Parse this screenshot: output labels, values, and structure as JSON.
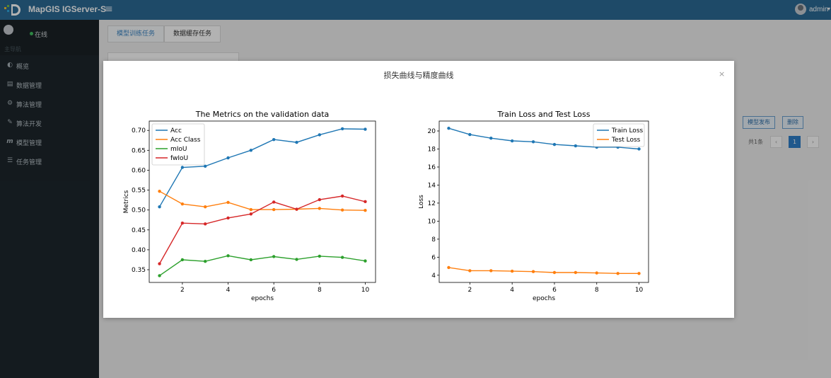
{
  "header": {
    "brand": "MapGIS IGServer-S",
    "menu_icon": "≡",
    "user": "admin"
  },
  "sidebar": {
    "status": "在线",
    "heading": "主导航",
    "items": [
      {
        "icon": "◐",
        "label": "概览"
      },
      {
        "icon": "▤",
        "label": "数据管理"
      },
      {
        "icon": "⚙",
        "label": "算法管理"
      },
      {
        "icon": "✎",
        "label": "算法开发"
      },
      {
        "icon": "m",
        "label": "模型管理"
      },
      {
        "icon": "☰",
        "label": "任务管理"
      }
    ]
  },
  "page": {
    "tabs": [
      {
        "label": "模型训练任务",
        "active": true
      },
      {
        "label": "数据缓存任务",
        "active": false
      }
    ],
    "row_buttons": [
      "模型发布",
      "删除"
    ],
    "pagination": {
      "total": "共1条",
      "prev": "‹",
      "current": "1",
      "next": "›"
    }
  },
  "modal": {
    "title": "损失曲线与精度曲线",
    "close": "×"
  },
  "chart_data": [
    {
      "type": "line",
      "title": "The Metrics on the validation data",
      "xlabel": "epochs",
      "ylabel": "Metrics",
      "x": [
        1,
        2,
        3,
        4,
        5,
        6,
        7,
        8,
        9,
        10
      ],
      "xlim": [
        0.55,
        10.45
      ],
      "ylim": [
        0.318,
        0.7235
      ],
      "xticks": [
        2,
        4,
        6,
        8,
        10
      ],
      "yticks": [
        0.35,
        0.4,
        0.45,
        0.5,
        0.55,
        0.6,
        0.65,
        0.7
      ],
      "ytick_labels": [
        "0.35",
        "0.40",
        "0.45",
        "0.50",
        "0.55",
        "0.60",
        "0.65",
        "0.70"
      ],
      "legend": "top-left",
      "series": [
        {
          "name": "Acc",
          "color": "#1f77b4",
          "values": [
            0.508,
            0.607,
            0.61,
            0.631,
            0.65,
            0.677,
            0.67,
            0.689,
            0.704,
            0.703
          ]
        },
        {
          "name": "Acc Class",
          "color": "#ff7f0e",
          "values": [
            0.547,
            0.515,
            0.508,
            0.519,
            0.501,
            0.501,
            0.502,
            0.504,
            0.5,
            0.499
          ]
        },
        {
          "name": "mIoU",
          "color": "#2ca02c",
          "values": [
            0.335,
            0.375,
            0.371,
            0.385,
            0.375,
            0.383,
            0.376,
            0.384,
            0.381,
            0.372
          ]
        },
        {
          "name": "fwIoU",
          "color": "#d62728",
          "values": [
            0.365,
            0.467,
            0.465,
            0.48,
            0.49,
            0.52,
            0.502,
            0.526,
            0.535,
            0.521
          ]
        }
      ]
    },
    {
      "type": "line",
      "title": "Train Loss and Test Loss",
      "xlabel": "epochs",
      "ylabel": "Loss",
      "x": [
        1,
        2,
        3,
        4,
        5,
        6,
        7,
        8,
        9,
        10
      ],
      "xlim": [
        0.55,
        10.45
      ],
      "ylim": [
        3.2,
        21.1
      ],
      "xticks": [
        2,
        4,
        6,
        8,
        10
      ],
      "yticks": [
        4,
        6,
        8,
        10,
        12,
        14,
        16,
        18,
        20
      ],
      "ytick_labels": [
        "4",
        "6",
        "8",
        "10",
        "12",
        "14",
        "16",
        "18",
        "20"
      ],
      "legend": "top-right",
      "series": [
        {
          "name": "Train Loss",
          "color": "#1f77b4",
          "values": [
            20.3,
            19.6,
            19.2,
            18.9,
            18.8,
            18.5,
            18.35,
            18.2,
            18.2,
            18.0
          ]
        },
        {
          "name": "Test Loss",
          "color": "#ff7f0e",
          "values": [
            4.85,
            4.5,
            4.5,
            4.45,
            4.4,
            4.3,
            4.3,
            4.25,
            4.2,
            4.2
          ]
        }
      ]
    }
  ]
}
